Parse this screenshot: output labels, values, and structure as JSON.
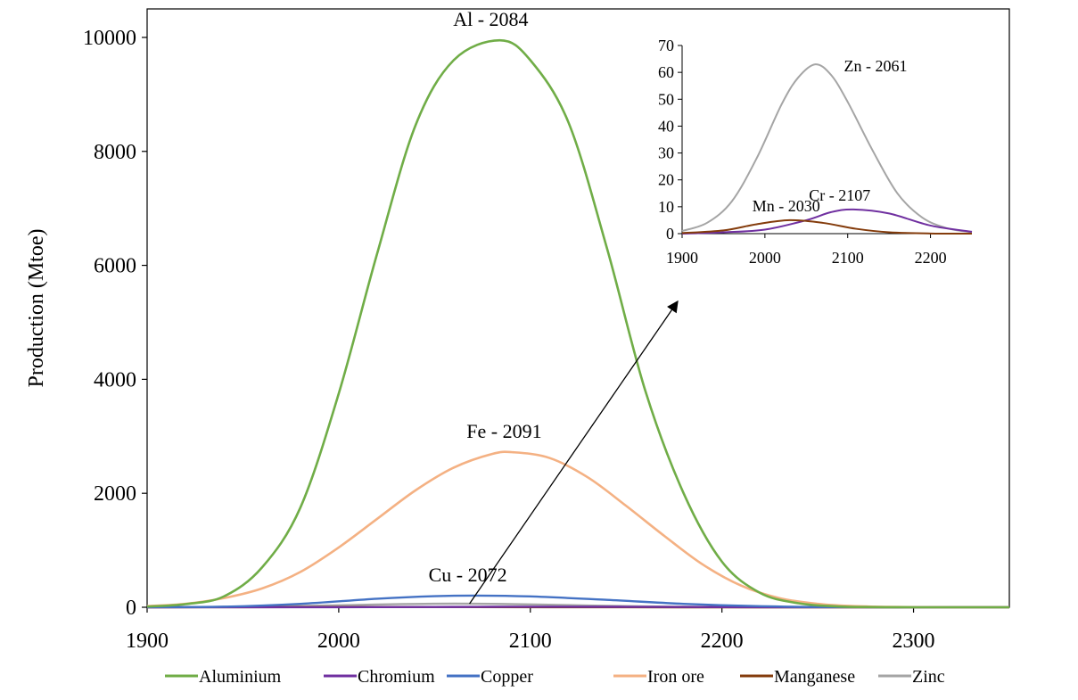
{
  "chart_data": [
    {
      "type": "line",
      "title": "",
      "xlabel": "",
      "ylabel": "Production (Mtoe)",
      "xlim": [
        1900,
        2350
      ],
      "ylim": [
        0,
        10500
      ],
      "x_ticks": [
        1900,
        2000,
        2100,
        2200,
        2300
      ],
      "y_ticks": [
        0,
        2000,
        4000,
        6000,
        8000,
        10000
      ],
      "grid": false,
      "legend_position": "bottom",
      "series": [
        {
          "name": "Aluminium",
          "color": "#70ad47",
          "peak_year": 2084,
          "peak_value": 9950,
          "x": [
            1900,
            1920,
            1940,
            1960,
            1980,
            2000,
            2020,
            2040,
            2060,
            2084,
            2100,
            2120,
            2140,
            2160,
            2180,
            2200,
            2220,
            2240,
            2260,
            2280,
            2300,
            2350
          ],
          "y": [
            12,
            55,
            190,
            700,
            1750,
            3750,
            6200,
            8450,
            9600,
            9950,
            9600,
            8500,
            6300,
            3800,
            2000,
            800,
            250,
            70,
            15,
            3,
            0,
            0
          ]
        },
        {
          "name": "Chromium",
          "color": "#7030a0",
          "peak_year": 2107,
          "peak_value": 9,
          "x": [
            1900,
            1950,
            2000,
            2050,
            2080,
            2107,
            2150,
            2200,
            2250,
            2300,
            2350
          ],
          "y": [
            0,
            0.5,
            1.5,
            5,
            8,
            9,
            7.5,
            3,
            0.7,
            0.1,
            0
          ]
        },
        {
          "name": "Copper",
          "color": "#4472c4",
          "peak_year": 2072,
          "peak_value": 205,
          "x": [
            1900,
            1940,
            1980,
            2020,
            2050,
            2072,
            2100,
            2140,
            2180,
            2220,
            2260,
            2350
          ],
          "y": [
            2,
            10,
            60,
            150,
            195,
            205,
            190,
            130,
            60,
            18,
            4,
            0
          ]
        },
        {
          "name": "Iron ore",
          "color": "#f4b183",
          "peak_year": 2091,
          "peak_value": 2720,
          "x": [
            1900,
            1920,
            1940,
            1960,
            1980,
            2000,
            2020,
            2040,
            2060,
            2080,
            2091,
            2110,
            2130,
            2150,
            2170,
            2190,
            2210,
            2230,
            2250,
            2270,
            2300,
            2350
          ],
          "y": [
            20,
            60,
            160,
            330,
            620,
            1050,
            1550,
            2050,
            2450,
            2690,
            2720,
            2620,
            2280,
            1780,
            1250,
            750,
            380,
            160,
            60,
            18,
            2,
            0
          ]
        },
        {
          "name": "Manganese",
          "color": "#843c0c",
          "peak_year": 2030,
          "peak_value": 5,
          "x": [
            1900,
            1950,
            1990,
            2030,
            2070,
            2110,
            2150,
            2200,
            2250,
            2350
          ],
          "y": [
            0.2,
            1.2,
            3.5,
            5,
            4,
            1.8,
            0.5,
            0.05,
            0,
            0
          ]
        },
        {
          "name": "Zinc",
          "color": "#a5a5a5",
          "peak_year": 2061,
          "peak_value": 63,
          "x": [
            1900,
            1930,
            1960,
            1990,
            2020,
            2040,
            2061,
            2080,
            2100,
            2130,
            2160,
            2190,
            2220,
            2250,
            2350
          ],
          "y": [
            1,
            4,
            12,
            28,
            48,
            58,
            63,
            59,
            49,
            31,
            15,
            6,
            2,
            0.5,
            0
          ]
        }
      ],
      "annotations": [
        {
          "text": "Al -  2084",
          "series": "Aluminium"
        },
        {
          "text": "Fe - 2091",
          "series": "Iron ore"
        },
        {
          "text": "Cu - 2072",
          "series": "Copper"
        }
      ]
    },
    {
      "type": "line",
      "title": "",
      "xlim": [
        1900,
        2250
      ],
      "ylim": [
        0,
        70
      ],
      "x_ticks": [
        1900,
        2000,
        2100,
        2200
      ],
      "y_ticks": [
        0,
        10,
        20,
        30,
        40,
        50,
        60,
        70
      ],
      "grid": false,
      "series_shown": [
        "Zinc",
        "Chromium",
        "Manganese"
      ],
      "annotations": [
        {
          "text": "Zn - 2061",
          "series": "Zinc"
        },
        {
          "text": "Cr - 2107",
          "series": "Chromium"
        },
        {
          "text": "Mn - 2030",
          "series": "Manganese"
        }
      ]
    }
  ]
}
